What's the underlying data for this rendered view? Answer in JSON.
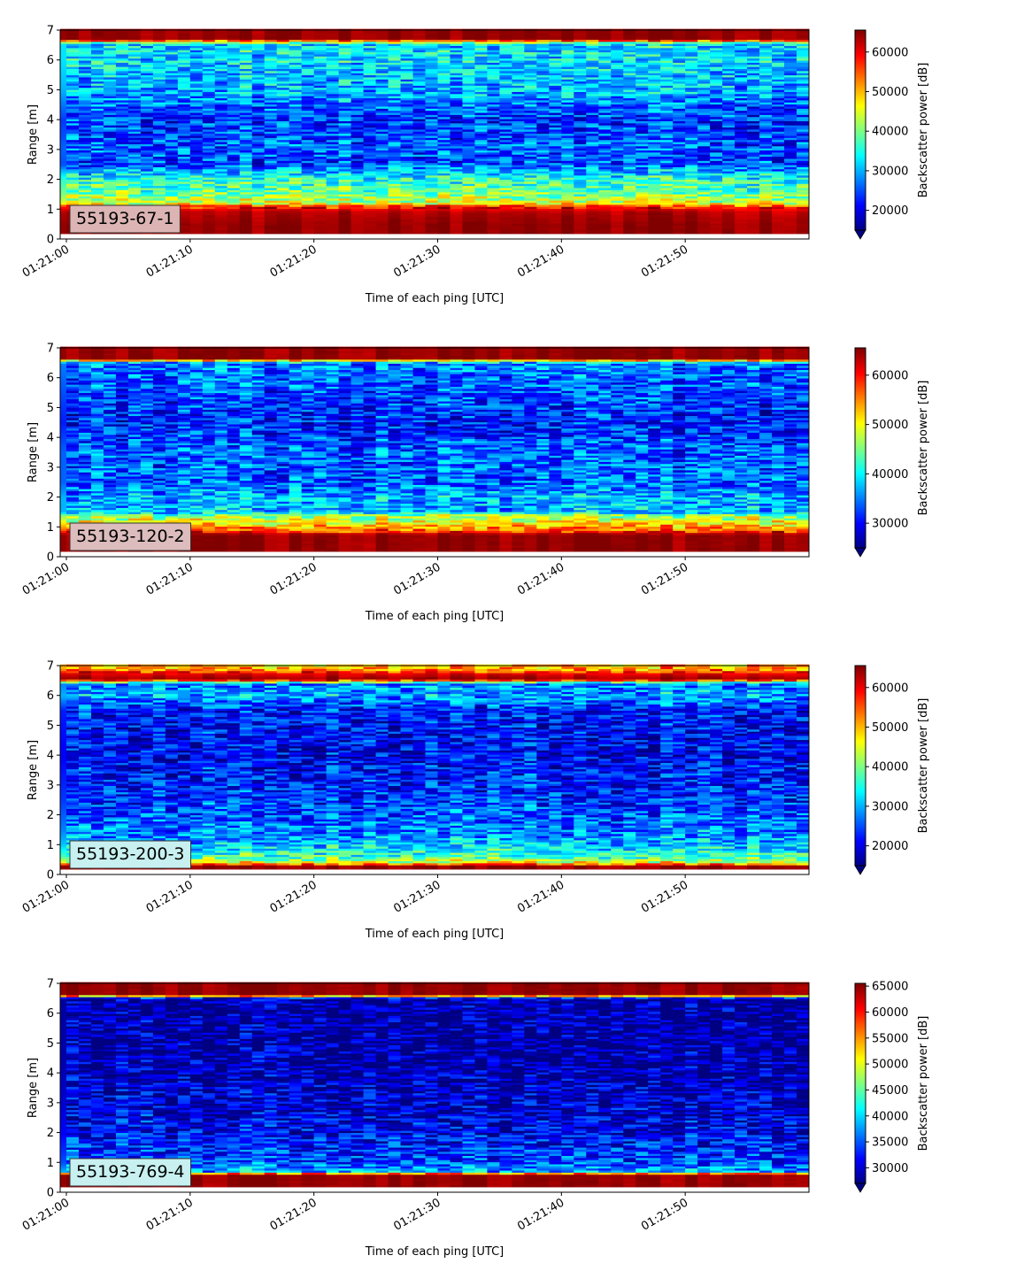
{
  "chart_data": [
    {
      "type": "heatmap",
      "panel_label": "55193-67-1",
      "label_box_color": "#dcb4b4",
      "xlabel": "Time of each ping [UTC]",
      "ylabel": "Range [m]",
      "x_range": [
        "01:21:00",
        "01:21:59"
      ],
      "x_ticks": [
        "01:21:00",
        "01:21:10",
        "01:21:20",
        "01:21:30",
        "01:21:40",
        "01:21:50"
      ],
      "ylim": [
        0,
        7
      ],
      "y_ticks": [
        "0",
        "1",
        "2",
        "3",
        "4",
        "5",
        "6",
        "7"
      ],
      "colorbar": {
        "label": "Backscatter power [dB]",
        "min": 15000,
        "max": 65535,
        "ticks": [
          "20000",
          "30000",
          "40000",
          "50000",
          "60000"
        ],
        "tick_values": [
          20000,
          30000,
          40000,
          50000,
          60000
        ],
        "colormap": "jet",
        "extend": "min"
      },
      "profile": [
        {
          "range_m": 0.25,
          "level": 0.98
        },
        {
          "range_m": 0.5,
          "level": 0.98
        },
        {
          "range_m": 0.9,
          "level": 0.95
        },
        {
          "range_m": 1.1,
          "level": 0.85
        },
        {
          "range_m": 1.2,
          "level": 0.6
        },
        {
          "range_m": 1.5,
          "level": 0.5
        },
        {
          "range_m": 2.0,
          "level": 0.42
        },
        {
          "range_m": 2.3,
          "level": 0.3
        },
        {
          "range_m": 2.5,
          "level": 0.2
        },
        {
          "range_m": 3.0,
          "level": 0.22
        },
        {
          "range_m": 4.0,
          "level": 0.18
        },
        {
          "range_m": 5.0,
          "level": 0.3
        },
        {
          "range_m": 6.0,
          "level": 0.35
        },
        {
          "range_m": 6.55,
          "level": 0.35
        },
        {
          "range_m": 6.7,
          "level": 0.98
        },
        {
          "range_m": 7.0,
          "level": 0.98
        }
      ]
    },
    {
      "type": "heatmap",
      "panel_label": "55193-120-2",
      "label_box_color": "#dcbcbc",
      "xlabel": "Time of each ping [UTC]",
      "ylabel": "Range [m]",
      "x_range": [
        "01:21:00",
        "01:21:59"
      ],
      "x_ticks": [
        "01:21:00",
        "01:21:10",
        "01:21:20",
        "01:21:30",
        "01:21:40",
        "01:21:50"
      ],
      "ylim": [
        0,
        7
      ],
      "y_ticks": [
        "0",
        "1",
        "2",
        "3",
        "4",
        "5",
        "6",
        "7"
      ],
      "colorbar": {
        "label": "Backscatter power [dB]",
        "min": 25000,
        "max": 65535,
        "ticks": [
          "30000",
          "40000",
          "50000",
          "60000"
        ],
        "tick_values": [
          30000,
          40000,
          50000,
          60000
        ],
        "colormap": "jet",
        "extend": "min"
      },
      "profile": [
        {
          "range_m": 0.25,
          "level": 0.98
        },
        {
          "range_m": 0.75,
          "level": 0.98
        },
        {
          "range_m": 0.9,
          "level": 0.78
        },
        {
          "range_m": 1.1,
          "level": 0.66
        },
        {
          "range_m": 1.4,
          "level": 0.5
        },
        {
          "range_m": 1.5,
          "level": 0.3
        },
        {
          "range_m": 2.0,
          "level": 0.3
        },
        {
          "range_m": 2.5,
          "level": 0.22
        },
        {
          "range_m": 3.5,
          "level": 0.22
        },
        {
          "range_m": 4.5,
          "level": 0.15
        },
        {
          "range_m": 5.5,
          "level": 0.2
        },
        {
          "range_m": 6.5,
          "level": 0.25
        },
        {
          "range_m": 6.65,
          "level": 0.98
        },
        {
          "range_m": 7.0,
          "level": 0.98
        }
      ]
    },
    {
      "type": "heatmap",
      "panel_label": "55193-200-3",
      "label_box_color": "#c8f0f0",
      "xlabel": "Time of each ping [UTC]",
      "ylabel": "Range [m]",
      "x_range": [
        "01:21:00",
        "01:21:59"
      ],
      "x_ticks": [
        "01:21:00",
        "01:21:10",
        "01:21:20",
        "01:21:30",
        "01:21:40",
        "01:21:50"
      ],
      "ylim": [
        0,
        7
      ],
      "y_ticks": [
        "0",
        "1",
        "2",
        "3",
        "4",
        "5",
        "6",
        "7"
      ],
      "colorbar": {
        "label": "Backscatter power [dB]",
        "min": 15000,
        "max": 65535,
        "ticks": [
          "20000",
          "30000",
          "40000",
          "50000",
          "60000"
        ],
        "tick_values": [
          20000,
          30000,
          40000,
          50000,
          60000
        ],
        "colormap": "jet",
        "extend": "min"
      },
      "profile": [
        {
          "range_m": 0.1,
          "level": 0.98
        },
        {
          "range_m": 0.3,
          "level": 0.98
        },
        {
          "range_m": 0.4,
          "level": 0.62
        },
        {
          "range_m": 0.6,
          "level": 0.45
        },
        {
          "range_m": 1.0,
          "level": 0.32
        },
        {
          "range_m": 1.5,
          "level": 0.25
        },
        {
          "range_m": 2.5,
          "level": 0.18
        },
        {
          "range_m": 4.0,
          "level": 0.12
        },
        {
          "range_m": 5.5,
          "level": 0.15
        },
        {
          "range_m": 6.0,
          "level": 0.3
        },
        {
          "range_m": 6.4,
          "level": 0.25
        },
        {
          "range_m": 6.55,
          "level": 0.98
        },
        {
          "range_m": 6.75,
          "level": 0.9
        },
        {
          "range_m": 6.9,
          "level": 0.7
        },
        {
          "range_m": 7.0,
          "level": 0.7
        }
      ]
    },
    {
      "type": "heatmap",
      "panel_label": "55193-769-4",
      "label_box_color": "#c8f0f0",
      "xlabel": "Time of each ping [UTC]",
      "ylabel": "Range [m]",
      "x_range": [
        "01:21:00",
        "01:21:59"
      ],
      "x_ticks": [
        "01:21:00",
        "01:21:10",
        "01:21:20",
        "01:21:30",
        "01:21:40",
        "01:21:50"
      ],
      "ylim": [
        0,
        7
      ],
      "y_ticks": [
        "0",
        "1",
        "2",
        "3",
        "4",
        "5",
        "6",
        "7"
      ],
      "colorbar": {
        "label": "Backscatter power [dB]",
        "min": 27000,
        "max": 65535,
        "ticks": [
          "30000",
          "35000",
          "40000",
          "45000",
          "50000",
          "55000",
          "60000",
          "65000"
        ],
        "tick_values": [
          30000,
          35000,
          40000,
          45000,
          50000,
          55000,
          60000,
          65000
        ],
        "colormap": "jet",
        "extend": "min"
      },
      "profile": [
        {
          "range_m": 0.25,
          "level": 0.98
        },
        {
          "range_m": 0.6,
          "level": 0.98
        },
        {
          "range_m": 0.7,
          "level": 0.3
        },
        {
          "range_m": 1.0,
          "level": 0.2
        },
        {
          "range_m": 2.0,
          "level": 0.12
        },
        {
          "range_m": 3.0,
          "level": 0.08
        },
        {
          "range_m": 4.5,
          "level": 0.04
        },
        {
          "range_m": 6.5,
          "level": 0.03
        },
        {
          "range_m": 6.62,
          "level": 0.98
        },
        {
          "range_m": 7.0,
          "level": 0.98
        }
      ]
    }
  ]
}
